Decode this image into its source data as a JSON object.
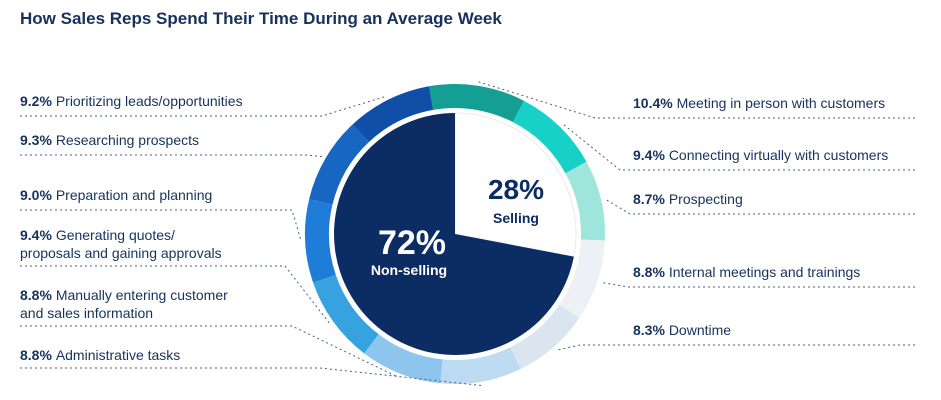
{
  "title": "How Sales Reps Spend Their Time During an Average Week",
  "chart_data": {
    "type": "pie",
    "title": "How Sales Reps Spend Their Time During an Average Week",
    "inner": {
      "slices": [
        {
          "label": "Non-selling",
          "value": 72,
          "display": "72%",
          "color": "#0b2d63"
        },
        {
          "label": "Selling",
          "value": 28,
          "display": "28%",
          "color": "#ffffff"
        }
      ]
    },
    "outer": {
      "slices": [
        {
          "label": "Meeting in person with customers",
          "value": 10.4,
          "display": "10.4%",
          "color": "#149f94"
        },
        {
          "label": "Connecting virtually with customers",
          "value": 9.4,
          "display": "9.4%",
          "color": "#17d0c8"
        },
        {
          "label": "Prospecting",
          "value": 8.7,
          "display": "8.7%",
          "color": "#9ee6db"
        },
        {
          "label": "Internal meetings and trainings",
          "value": 8.8,
          "display": "8.8%",
          "color": "#edf1f5"
        },
        {
          "label": "Downtime",
          "value": 8.3,
          "display": "8.3%",
          "color": "#dbe5ef"
        },
        {
          "label": "Administrative tasks",
          "value": 8.8,
          "display": "8.8%",
          "color": "#bddaf3"
        },
        {
          "label": "Manually entering customer and sales information",
          "value": 8.8,
          "display": "8.8%",
          "color": "#8ec5ef"
        },
        {
          "label": "Generating quotes/ proposals and gaining approvals",
          "value": 9.4,
          "display": "9.4%",
          "color": "#36a3e0"
        },
        {
          "label": "Preparation and planning",
          "value": 9.0,
          "display": "9.0%",
          "color": "#1f7dd8"
        },
        {
          "label": "Researching prospects",
          "value": 9.3,
          "display": "9.3%",
          "color": "#1766c2"
        },
        {
          "label": "Prioritizing leads/opportunities",
          "value": 9.2,
          "display": "9.2%",
          "color": "#0f4fa8"
        }
      ]
    },
    "labels": [
      {
        "pct": "10.4%",
        "lines": [
          "Meeting in person with customers"
        ]
      },
      {
        "pct": "9.4%",
        "lines": [
          "Connecting virtually with customers"
        ]
      },
      {
        "pct": "8.7%",
        "lines": [
          "Prospecting"
        ]
      },
      {
        "pct": "8.8%",
        "lines": [
          "Internal meetings and trainings"
        ]
      },
      {
        "pct": "8.3%",
        "lines": [
          "Downtime"
        ]
      },
      {
        "pct": "8.8%",
        "lines": [
          "Administrative tasks"
        ]
      },
      {
        "pct": "8.8%",
        "lines": [
          "Manually entering customer",
          "and sales information"
        ]
      },
      {
        "pct": "9.4%",
        "lines": [
          "Generating quotes/",
          "proposals and gaining approvals"
        ]
      },
      {
        "pct": "9.0%",
        "lines": [
          "Preparation and planning"
        ]
      },
      {
        "pct": "9.3%",
        "lines": [
          "Researching prospects"
        ]
      },
      {
        "pct": "9.2%",
        "lines": [
          "Prioritizing leads/opportunities"
        ]
      }
    ]
  }
}
